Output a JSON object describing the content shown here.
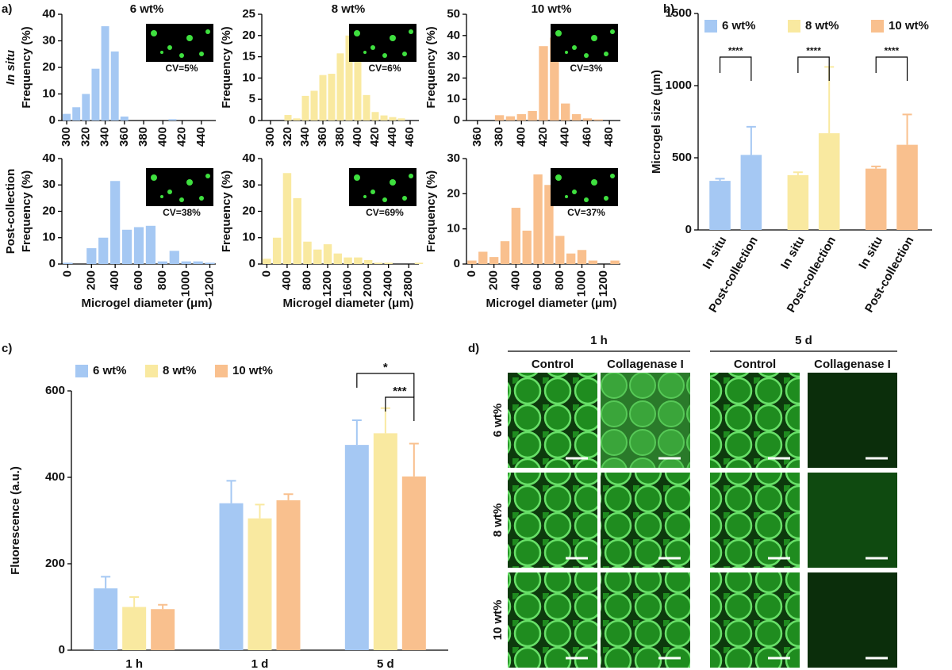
{
  "chart_data": [
    {
      "type": "bar",
      "panel_label": "a)",
      "row_label": "In situ",
      "title": "6 wt%",
      "x": [
        300,
        310,
        320,
        330,
        340,
        350,
        360,
        410
      ],
      "values": [
        2.5,
        5,
        10,
        19.5,
        35.5,
        26,
        1.5,
        0.5
      ],
      "color": "#a5c8f3",
      "xlim": [
        295,
        455
      ],
      "xticks": [
        300,
        320,
        340,
        360,
        380,
        400,
        420,
        440
      ],
      "ylim": [
        0,
        40
      ],
      "yticks": [
        0,
        10,
        20,
        30,
        40
      ],
      "ylabel": "Frequency (%)",
      "inset_label": "CV=5%"
    },
    {
      "type": "bar",
      "title": "8 wt%",
      "x": [
        320,
        330,
        340,
        350,
        360,
        370,
        380,
        390,
        400,
        410,
        420,
        430,
        440,
        450
      ],
      "values": [
        1.3,
        0.5,
        5.8,
        7,
        10.7,
        11,
        15.8,
        20,
        16,
        6,
        2,
        1.2,
        0.8,
        0.5
      ],
      "color": "#f9e9a0",
      "xlim": [
        290,
        470
      ],
      "xticks": [
        300,
        320,
        340,
        360,
        380,
        400,
        420,
        440,
        460
      ],
      "ylim": [
        0,
        25
      ],
      "yticks": [
        0,
        5,
        10,
        15,
        20,
        25
      ],
      "ylabel": "Frequency (%)",
      "inset_label": "CV=6%"
    },
    {
      "type": "bar",
      "title": "10 wt%",
      "x": [
        380,
        390,
        400,
        410,
        420,
        430,
        440,
        450,
        460,
        470
      ],
      "values": [
        2.5,
        2,
        3,
        4.5,
        35,
        39,
        8,
        3,
        1,
        0.5
      ],
      "color": "#f9c08e",
      "xlim": [
        350,
        490
      ],
      "xticks": [
        360,
        380,
        400,
        420,
        440,
        460,
        480
      ],
      "ylim": [
        0,
        50
      ],
      "yticks": [
        0,
        10,
        20,
        30,
        40,
        50
      ],
      "ylabel": "Frequency (%)",
      "inset_label": "CV=3%"
    },
    {
      "type": "bar",
      "row_label": "Post-collection",
      "x": [
        0,
        200,
        300,
        400,
        500,
        600,
        700,
        800,
        900,
        1000,
        1100,
        1200
      ],
      "values": [
        0.5,
        6,
        10,
        31.5,
        13,
        14,
        14.5,
        1,
        5,
        1,
        1,
        0.5
      ],
      "color": "#a5c8f3",
      "xlim": [
        -50,
        1250
      ],
      "xticks": [
        0,
        200,
        400,
        600,
        800,
        1000,
        1200
      ],
      "ylim": [
        0,
        40
      ],
      "yticks": [
        0,
        10,
        20,
        30,
        40
      ],
      "ylabel": "Frequency (%)",
      "xlabel": "Microgel diameter (μm)",
      "inset_label": "CV=38%"
    },
    {
      "type": "bar",
      "x": [
        0,
        200,
        400,
        600,
        800,
        1000,
        1200,
        1400,
        1600,
        1800,
        2000,
        2200,
        2400,
        3000
      ],
      "values": [
        2,
        10,
        34.5,
        25,
        8.5,
        5.5,
        7.5,
        4,
        2.5,
        2.5,
        1.5,
        0.5,
        0.5,
        0.5
      ],
      "color": "#f9e9a0",
      "xlim": [
        -100,
        3000
      ],
      "xticks": [
        0,
        400,
        800,
        1200,
        1600,
        2000,
        2400,
        2800
      ],
      "ylim": [
        0,
        40
      ],
      "yticks": [
        0,
        10,
        20,
        30,
        40
      ],
      "ylabel": "Frequency (%)",
      "xlabel": "Microgel diameter (μm)",
      "inset_label": "CV=69%"
    },
    {
      "type": "bar",
      "x": [
        0,
        100,
        200,
        300,
        400,
        500,
        600,
        700,
        800,
        900,
        1000,
        1100,
        1300
      ],
      "values": [
        1,
        3.5,
        2,
        6.5,
        16,
        9.5,
        25.5,
        22.5,
        8,
        3,
        4,
        1,
        1
      ],
      "color": "#f9c08e",
      "xlim": [
        -50,
        1350
      ],
      "xticks": [
        0,
        200,
        400,
        600,
        800,
        1000,
        1200
      ],
      "ylim": [
        0,
        30
      ],
      "yticks": [
        0,
        10,
        20,
        30
      ],
      "ylabel": "Frequency (%)",
      "xlabel": "Microgel diameter (μm)",
      "inset_label": "CV=37%"
    },
    {
      "type": "grouped_bar",
      "panel_label": "b)",
      "categories": [
        "In situ",
        "Post-collection"
      ],
      "series": [
        {
          "name": "6 wt%",
          "color": "#a5c8f3",
          "values": [
            340,
            520
          ],
          "errors": [
            15,
            195
          ]
        },
        {
          "name": "8 wt%",
          "color": "#f9e9a0",
          "values": [
            380,
            670
          ],
          "errors": [
            20,
            460
          ]
        },
        {
          "name": "10 wt%",
          "color": "#f9c08e",
          "values": [
            425,
            590
          ],
          "errors": [
            15,
            210
          ]
        }
      ],
      "ylim": [
        0,
        1500
      ],
      "yticks": [
        0,
        500,
        1000,
        1500
      ],
      "ylabel": "Microgel size (μm)",
      "annotations": [
        "****",
        "****",
        "****"
      ]
    },
    {
      "type": "clustered_bar",
      "panel_label": "c)",
      "categories": [
        "1 h",
        "1 d",
        "5 d"
      ],
      "series": [
        {
          "name": "6 wt%",
          "color": "#a5c8f3",
          "values": [
            143,
            340,
            475
          ],
          "errors": [
            27,
            52,
            57
          ]
        },
        {
          "name": "8 wt%",
          "color": "#f9e9a0",
          "values": [
            100,
            305,
            502
          ],
          "errors": [
            23,
            32,
            58
          ]
        },
        {
          "name": "10 wt%",
          "color": "#f9c08e",
          "values": [
            95,
            347,
            402
          ],
          "errors": [
            10,
            14,
            76
          ]
        }
      ],
      "ylim": [
        0,
        600
      ],
      "yticks": [
        0,
        200,
        400,
        600
      ],
      "ylabel": "Fluorescence (a.u.)",
      "annotations": [
        "*",
        "***"
      ]
    }
  ],
  "panel_d": {
    "panel_label": "d)",
    "times": [
      "1 h",
      "5 d"
    ],
    "columns": [
      "Control",
      "Collagenase I",
      "Control",
      "Collagenase I"
    ],
    "rows": [
      "6 wt%",
      "8 wt%",
      "10 wt%"
    ]
  }
}
